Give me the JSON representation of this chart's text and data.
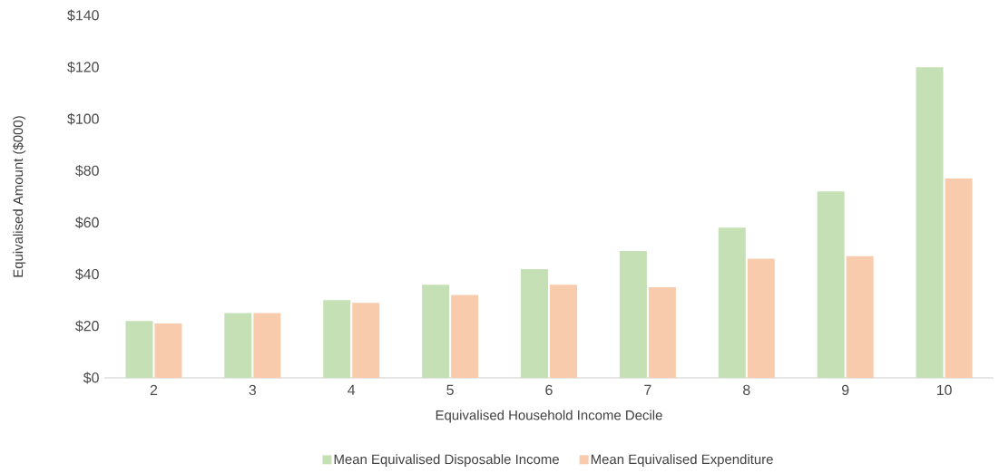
{
  "chart_data": {
    "type": "bar",
    "xlabel": "Equivalised Household Income Decile",
    "ylabel": "Equivalised Amount ($000)",
    "categories": [
      "2",
      "3",
      "4",
      "5",
      "6",
      "7",
      "8",
      "9",
      "10"
    ],
    "series": [
      {
        "name": "Mean Equivalised Disposable Income",
        "color": "#c5e0b4",
        "values": [
          22,
          25,
          30,
          36,
          42,
          49,
          58,
          72,
          120
        ]
      },
      {
        "name": "Mean Equivalised Expenditure",
        "color": "#f8cbad",
        "values": [
          21,
          25,
          29,
          32,
          36,
          35,
          46,
          47,
          77
        ]
      }
    ],
    "ylim": [
      0,
      140
    ],
    "yticks": [
      {
        "value": 0,
        "label": "$0"
      },
      {
        "value": 20,
        "label": "$20"
      },
      {
        "value": 40,
        "label": "$40"
      },
      {
        "value": 60,
        "label": "$60"
      },
      {
        "value": 80,
        "label": "$80"
      },
      {
        "value": 100,
        "label": "$100"
      },
      {
        "value": 120,
        "label": "$120"
      },
      {
        "value": 140,
        "label": "$140"
      }
    ],
    "legend": "bottom"
  }
}
